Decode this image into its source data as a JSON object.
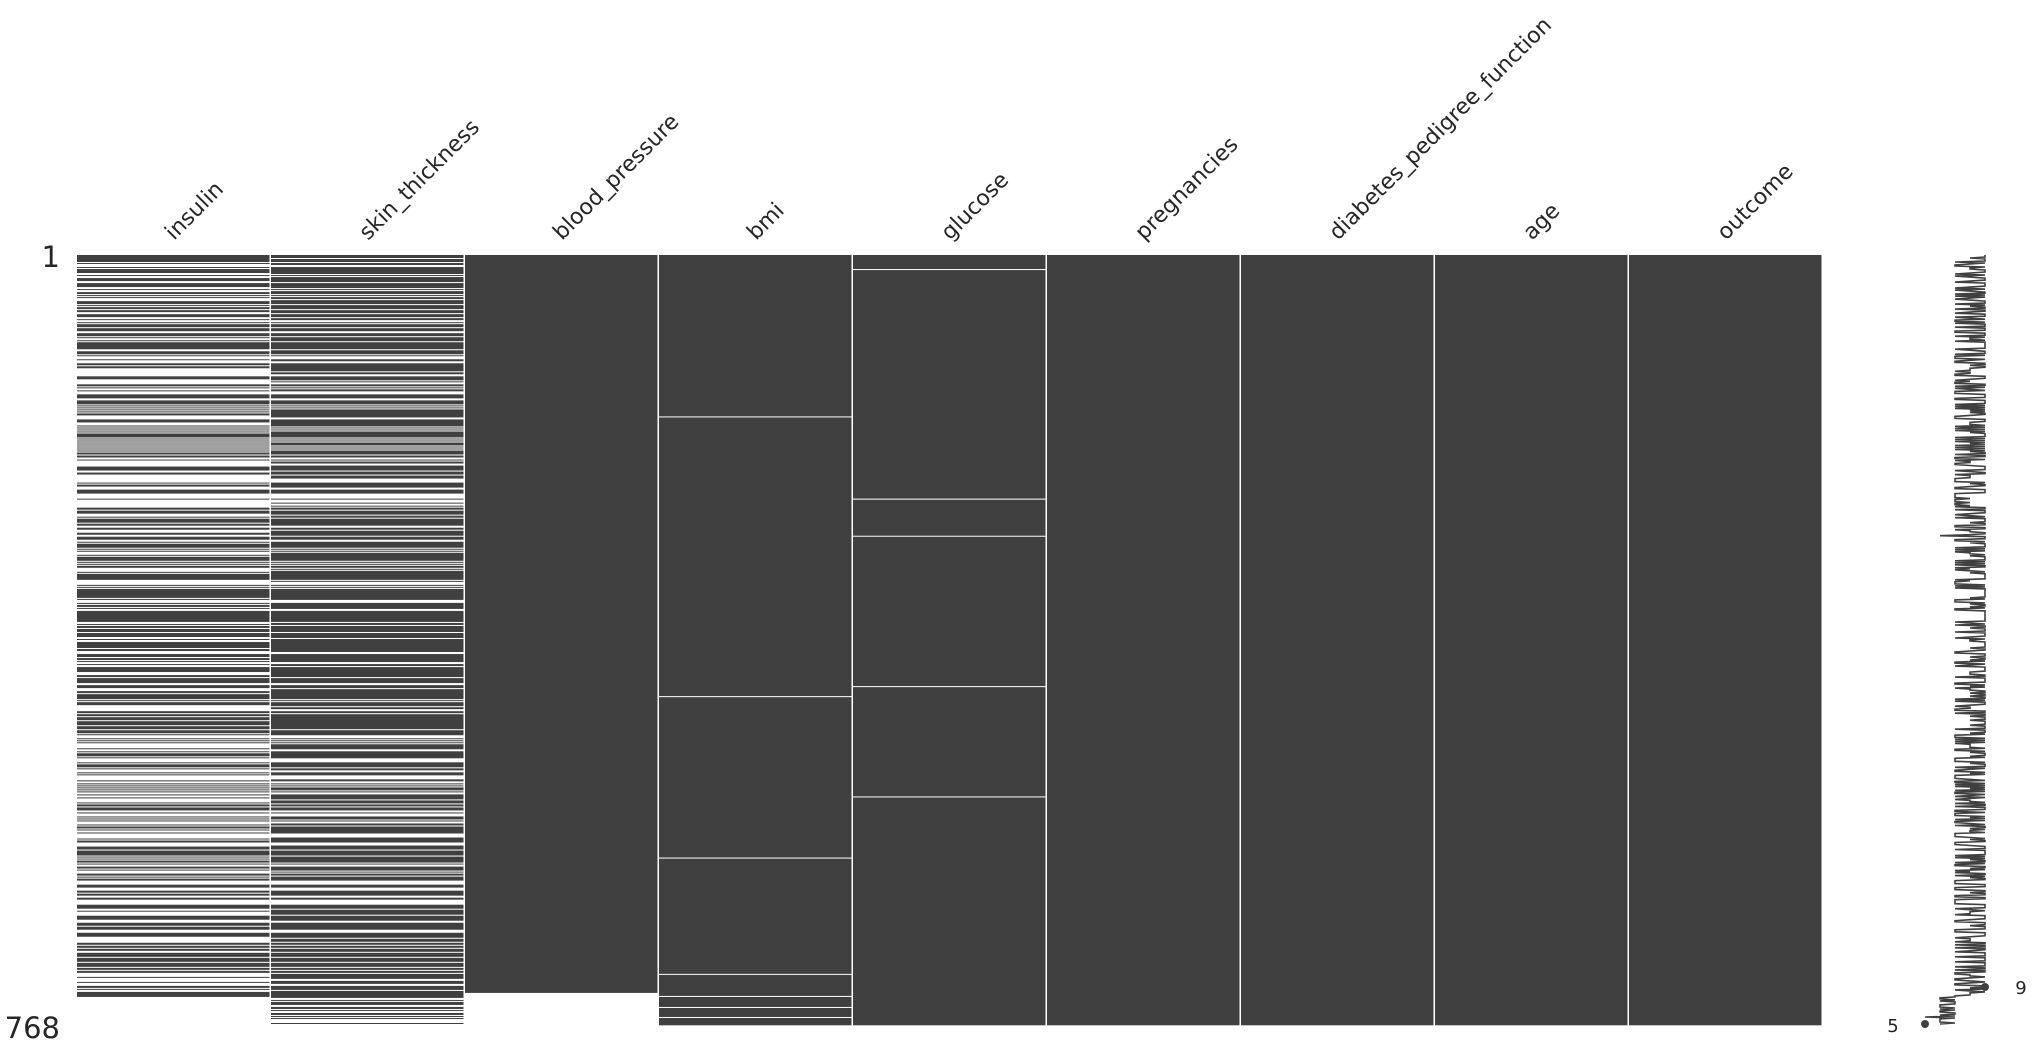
{
  "chart_data": {
    "type": "heatmap",
    "subtype": "missingness-matrix",
    "columns": [
      "insulin",
      "skin_thickness",
      "blood_pressure",
      "bmi",
      "glucose",
      "pregnancies",
      "diabetes_pedigree_function",
      "age",
      "outcome"
    ],
    "row_count": 768,
    "y_tick_top": "1",
    "y_tick_bottom": "768",
    "filled_color": "#404040",
    "missing_color": "#ffffff",
    "column_separator_color": "#ffffff",
    "sparkline": {
      "min_label": "5",
      "max_label": "9",
      "min_value": 5,
      "max_value": 9
    }
  }
}
